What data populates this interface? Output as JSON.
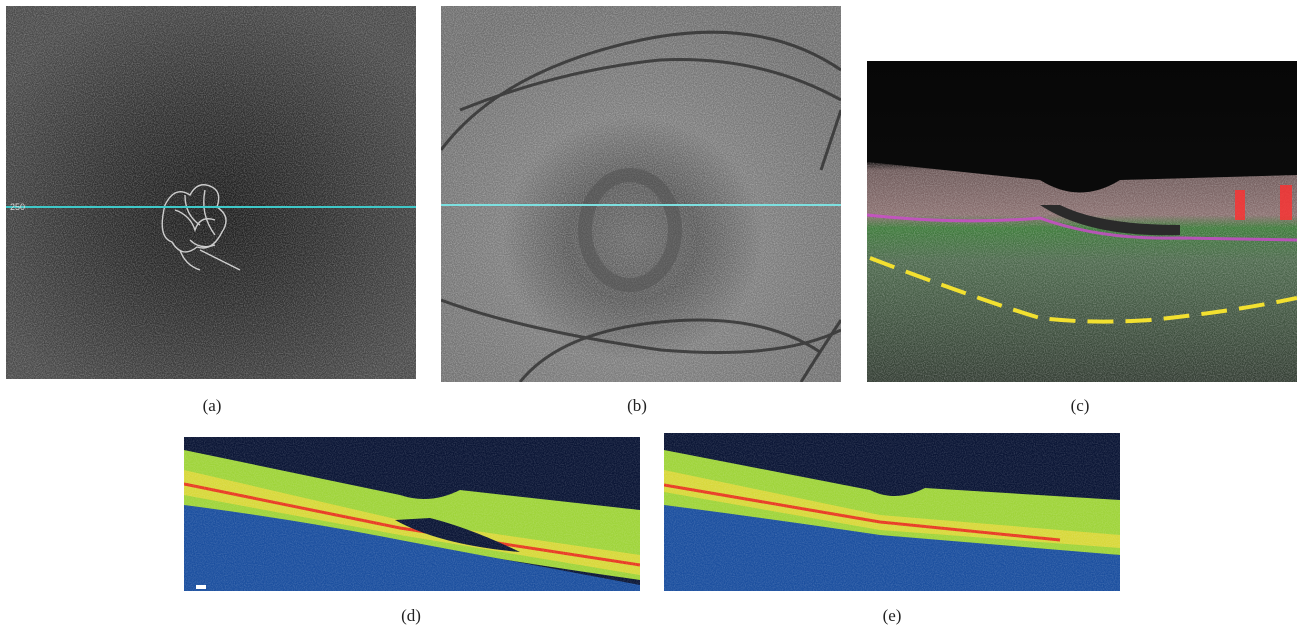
{
  "panels": [
    {
      "label": "(a)",
      "annotation": "250"
    },
    {
      "label": "(b)"
    },
    {
      "label": "(c)"
    },
    {
      "label": "(d)"
    },
    {
      "label": "(e)"
    }
  ]
}
